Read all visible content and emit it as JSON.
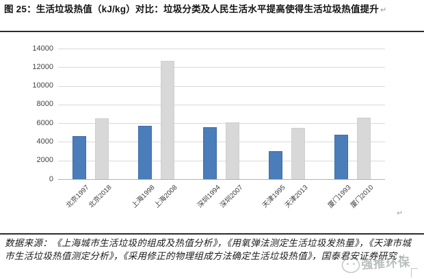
{
  "header": {
    "figure_label_title": "图 25：生活垃圾热值（kJ/kg）对比：垃圾分类及人民生活水平提高使得生活垃圾热值提升",
    "return_mark": "↵"
  },
  "chart_data": {
    "type": "bar",
    "title": "生活垃圾热值（kJ/kg）对比",
    "categories": [
      "北京1997",
      "北京2018",
      "上海1998",
      "上海2008",
      "深圳1994",
      "深圳2007",
      "天津1995",
      "天津2013",
      "厦门1993",
      "厦门2010"
    ],
    "values": [
      4600,
      6500,
      5700,
      12700,
      5600,
      6100,
      3000,
      5500,
      4800,
      6600
    ],
    "bar_colors": [
      "blue",
      "gray",
      "blue",
      "gray",
      "blue",
      "gray",
      "blue",
      "gray",
      "blue",
      "gray"
    ],
    "color_hex": {
      "blue": "#4a7db9",
      "gray": "#d8d8d8"
    },
    "y_ticks": [
      0,
      2000,
      4000,
      6000,
      8000,
      10000,
      12000,
      14000
    ],
    "ylim": [
      0,
      14000
    ],
    "xlabel": "",
    "ylabel": "",
    "grid": "horizontal",
    "legend": "none",
    "unit": "kJ/kg"
  },
  "footer": {
    "source_text": "数据来源：《上海城市生活垃圾的组成及热值分析》，《用氧弹法测定生活垃圾发热量》，《天津市城市生活垃圾热值测定分析》，《采用修正的物理组成方法确定生活垃圾热值》，国泰君安证券研究",
    "return_mark": "↵"
  },
  "watermark": {
    "text": "强推环保"
  }
}
